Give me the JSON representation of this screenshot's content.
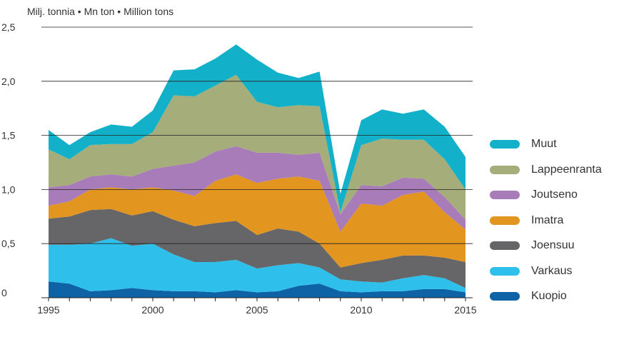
{
  "chart_data": {
    "type": "area",
    "stacked": true,
    "unit_label": "Milj. tonnia  •  Mn ton  •  Million tons",
    "x": [
      1995,
      1996,
      1997,
      1998,
      1999,
      2000,
      2001,
      2002,
      2003,
      2004,
      2005,
      2006,
      2007,
      2008,
      2009,
      2010,
      2011,
      2012,
      2013,
      2014,
      2015
    ],
    "xticks": [
      "1995",
      "2000",
      "2005",
      "2010",
      "2015"
    ],
    "ylim": [
      0,
      2.5
    ],
    "yticks": [
      "0",
      "0,5",
      "1,0",
      "1,5",
      "2,0",
      "2,5"
    ],
    "grid": true,
    "legend_position": "right",
    "series": [
      {
        "name": "Kuopio",
        "color": "#0e63a6",
        "values": [
          0.15,
          0.13,
          0.06,
          0.07,
          0.09,
          0.07,
          0.06,
          0.06,
          0.05,
          0.07,
          0.05,
          0.06,
          0.11,
          0.13,
          0.06,
          0.05,
          0.06,
          0.06,
          0.08,
          0.08,
          0.05
        ]
      },
      {
        "name": "Varkaus",
        "color": "#2ec0ea",
        "values": [
          0.34,
          0.36,
          0.44,
          0.48,
          0.39,
          0.43,
          0.34,
          0.27,
          0.28,
          0.28,
          0.22,
          0.24,
          0.21,
          0.15,
          0.11,
          0.1,
          0.08,
          0.12,
          0.13,
          0.1,
          0.04
        ]
      },
      {
        "name": "Joensuu",
        "color": "#666668",
        "values": [
          0.24,
          0.26,
          0.31,
          0.27,
          0.28,
          0.3,
          0.32,
          0.33,
          0.36,
          0.36,
          0.31,
          0.34,
          0.29,
          0.22,
          0.11,
          0.17,
          0.21,
          0.21,
          0.18,
          0.19,
          0.24
        ]
      },
      {
        "name": "Imatra",
        "color": "#e2951f",
        "values": [
          0.12,
          0.14,
          0.19,
          0.2,
          0.24,
          0.22,
          0.27,
          0.28,
          0.39,
          0.43,
          0.48,
          0.46,
          0.51,
          0.58,
          0.33,
          0.55,
          0.5,
          0.56,
          0.59,
          0.42,
          0.3
        ]
      },
      {
        "name": "Joutseno",
        "color": "#a87cb9",
        "values": [
          0.17,
          0.15,
          0.12,
          0.12,
          0.12,
          0.17,
          0.23,
          0.31,
          0.27,
          0.26,
          0.28,
          0.24,
          0.2,
          0.26,
          0.16,
          0.17,
          0.18,
          0.16,
          0.12,
          0.14,
          0.09
        ]
      },
      {
        "name": "Lappeenranta",
        "color": "#a5ad7a",
        "values": [
          0.35,
          0.24,
          0.29,
          0.28,
          0.3,
          0.34,
          0.65,
          0.61,
          0.61,
          0.66,
          0.47,
          0.42,
          0.46,
          0.43,
          0.02,
          0.37,
          0.44,
          0.35,
          0.36,
          0.35,
          0.28
        ]
      },
      {
        "name": "Muut",
        "color": "#13b1c9",
        "values": [
          0.18,
          0.13,
          0.12,
          0.18,
          0.16,
          0.2,
          0.23,
          0.25,
          0.25,
          0.28,
          0.39,
          0.32,
          0.25,
          0.32,
          0.17,
          0.23,
          0.27,
          0.24,
          0.28,
          0.3,
          0.3
        ]
      }
    ]
  }
}
